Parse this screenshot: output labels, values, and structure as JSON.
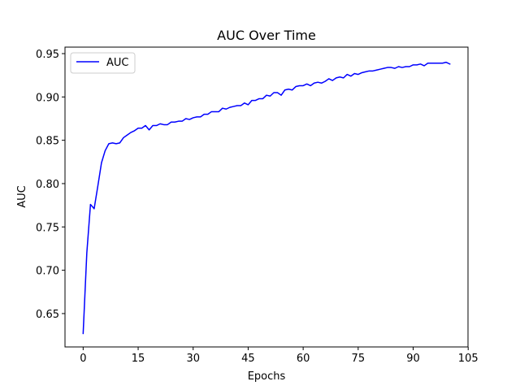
{
  "chart_data": {
    "type": "line",
    "title": "AUC Over Time",
    "xlabel": "Epochs",
    "ylabel": "AUC",
    "xlim": [
      -4.95,
      104.95
    ],
    "ylim": [
      0.6115,
      0.9575
    ],
    "xticks": [
      0,
      15,
      30,
      45,
      60,
      75,
      90,
      105
    ],
    "yticks": [
      0.65,
      0.7,
      0.75,
      0.8,
      0.85,
      0.9,
      0.95
    ],
    "ytick_labels": [
      "0.65",
      "0.70",
      "0.75",
      "0.80",
      "0.85",
      "0.90",
      "0.95"
    ],
    "grid": false,
    "legend_position": "upper left",
    "series": [
      {
        "name": "AUC",
        "color": "#0000ff",
        "x": [
          0,
          1,
          2,
          3,
          4,
          5,
          6,
          7,
          8,
          9,
          10,
          11,
          12,
          13,
          14,
          15,
          16,
          17,
          18,
          19,
          20,
          21,
          22,
          23,
          24,
          25,
          26,
          27,
          28,
          29,
          30,
          31,
          32,
          33,
          34,
          35,
          36,
          37,
          38,
          39,
          40,
          41,
          42,
          43,
          44,
          45,
          46,
          47,
          48,
          49,
          50,
          51,
          52,
          53,
          54,
          55,
          56,
          57,
          58,
          59,
          60,
          61,
          62,
          63,
          64,
          65,
          66,
          67,
          68,
          69,
          70,
          71,
          72,
          73,
          74,
          75,
          76,
          77,
          78,
          79,
          80,
          81,
          82,
          83,
          84,
          85,
          86,
          87,
          88,
          89,
          90,
          91,
          92,
          93,
          94,
          95,
          96,
          97,
          98,
          99,
          100
        ],
        "y": [
          0.627,
          0.72,
          0.776,
          0.771,
          0.797,
          0.824,
          0.838,
          0.846,
          0.847,
          0.846,
          0.847,
          0.853,
          0.856,
          0.859,
          0.861,
          0.864,
          0.864,
          0.867,
          0.862,
          0.867,
          0.867,
          0.869,
          0.868,
          0.868,
          0.871,
          0.871,
          0.872,
          0.872,
          0.875,
          0.874,
          0.876,
          0.877,
          0.877,
          0.88,
          0.88,
          0.883,
          0.883,
          0.883,
          0.887,
          0.886,
          0.888,
          0.889,
          0.89,
          0.89,
          0.893,
          0.891,
          0.896,
          0.896,
          0.898,
          0.898,
          0.902,
          0.901,
          0.905,
          0.905,
          0.902,
          0.908,
          0.909,
          0.908,
          0.912,
          0.913,
          0.913,
          0.915,
          0.913,
          0.916,
          0.917,
          0.916,
          0.918,
          0.921,
          0.919,
          0.922,
          0.923,
          0.922,
          0.926,
          0.924,
          0.927,
          0.926,
          0.928,
          0.929,
          0.93,
          0.93,
          0.931,
          0.932,
          0.933,
          0.934,
          0.934,
          0.933,
          0.935,
          0.934,
          0.935,
          0.935,
          0.937,
          0.937,
          0.938,
          0.936,
          0.939,
          0.939,
          0.939,
          0.939,
          0.939,
          0.94,
          0.938
        ]
      }
    ]
  }
}
